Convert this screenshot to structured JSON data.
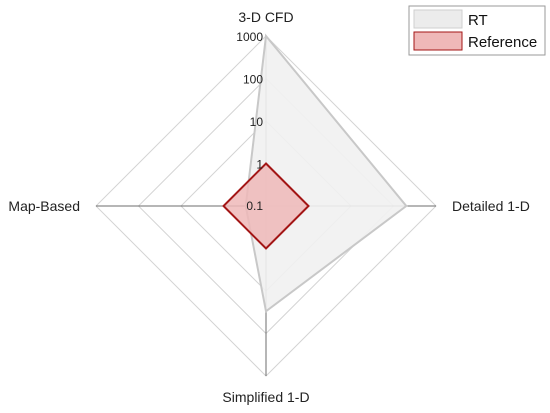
{
  "chart_data": {
    "type": "radar",
    "scale": "log10",
    "axis_range": [
      0.1,
      1000
    ],
    "axes": [
      "3-D CFD",
      "Detailed 1-D",
      "Simplified 1-D",
      "Map-Based"
    ],
    "tick_labels": [
      "0.1",
      "1",
      "10",
      "100",
      "1000"
    ],
    "series": [
      {
        "name": "RT",
        "values": [
          1000,
          200,
          30,
          0.3
        ],
        "color": "#c8c8c8",
        "fill": "#f1f1f1"
      },
      {
        "name": "Reference",
        "values": [
          1,
          1,
          1,
          1
        ],
        "color": "#a31515",
        "fill": "#efb8b8"
      }
    ],
    "legend_position": "top-right",
    "grid": true
  }
}
